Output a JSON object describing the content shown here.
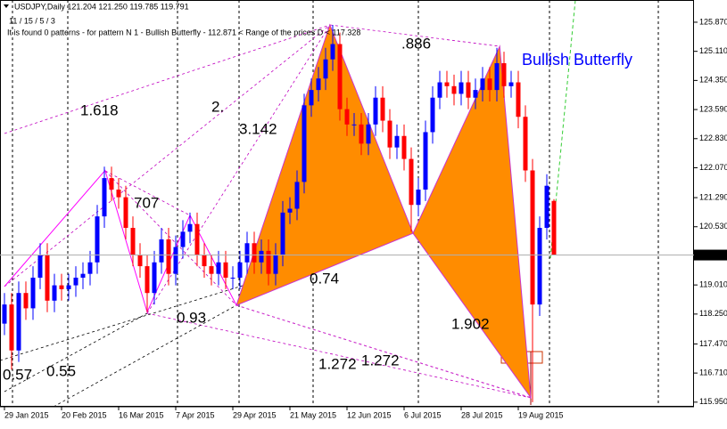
{
  "chart_data": {
    "type": "candlestick",
    "title": "USDJPY,Daily  121.204 121.250 119.785 119.791",
    "subtitle": "11 / 15 / 5 / 3",
    "info": "It is found 0 patterns  -  for pattern N 1 - Bullish Butterfly - 112.871 < Range of the prices D < 117.328",
    "categories": [
      "29 Jan 2015",
      null,
      null,
      null,
      null,
      null,
      null,
      null,
      "20 Feb 2015",
      null,
      null,
      null,
      null,
      null,
      null,
      null,
      "16 Mar 2015",
      null,
      null,
      null,
      null,
      null,
      null,
      null,
      "7 Apr 2015",
      null,
      null,
      null,
      null,
      null,
      null,
      null,
      "29 Apr 2015",
      null,
      null,
      null,
      null,
      null,
      null,
      null,
      "21 May 2015",
      null,
      null,
      null,
      null,
      null,
      null,
      null,
      "12 Jun 2015",
      null,
      null,
      null,
      null,
      null,
      null,
      null,
      "6 Jul 2015",
      null,
      null,
      null,
      null,
      null,
      null,
      null,
      "28 Jul 2015",
      null,
      null,
      null,
      null,
      null,
      null,
      null,
      "19 Aug 2015",
      null,
      null,
      null,
      null,
      null
    ],
    "open": [
      118.0,
      118.5,
      117.3,
      118.8,
      118.4,
      119.2,
      119.8,
      118.6,
      119.0,
      118.9,
      119.0,
      119.2,
      119.3,
      119.6,
      120.8,
      121.8,
      121.5,
      121.3,
      120.5,
      119.8,
      119.5,
      118.8,
      119.6,
      120.2,
      119.3,
      120.0,
      120.4,
      120.6,
      119.8,
      119.5,
      119.3,
      119.6,
      119.2,
      119.2,
      119.6,
      120.1,
      119.6,
      119.9,
      119.3,
      119.8,
      120.9,
      121.0,
      121.7,
      123.7,
      124.1,
      124.4,
      124.9,
      125.3,
      123.6,
      123.2,
      123.2,
      122.7,
      123.2,
      123.9,
      123.3,
      122.6,
      122.9,
      122.3,
      121.1,
      121.5,
      123.0,
      123.9,
      124.3,
      124.2,
      124.0,
      124.3,
      123.9,
      124.1,
      124.4,
      124.1,
      124.8,
      124.2,
      124.3,
      123.4,
      122.0,
      118.5,
      120.5,
      121.204
    ],
    "high": [
      118.8,
      118.8,
      119.1,
      119.1,
      119.5,
      120.1,
      120.1,
      119.3,
      119.3,
      119.3,
      119.5,
      119.6,
      119.9,
      121.1,
      122.1,
      122.1,
      121.8,
      121.6,
      120.8,
      120.1,
      119.8,
      119.9,
      120.5,
      120.5,
      120.3,
      120.7,
      120.9,
      120.9,
      120.1,
      119.8,
      119.9,
      119.9,
      119.5,
      119.9,
      120.4,
      120.4,
      120.2,
      120.2,
      120.1,
      121.2,
      121.3,
      122.0,
      124.0,
      124.4,
      124.7,
      125.2,
      125.8,
      125.6,
      123.9,
      123.5,
      123.5,
      123.5,
      124.2,
      124.2,
      123.6,
      123.2,
      123.2,
      122.6,
      121.8,
      123.3,
      124.2,
      124.6,
      124.6,
      124.5,
      124.6,
      124.6,
      124.4,
      124.7,
      124.7,
      125.2,
      125.1,
      124.6,
      124.6,
      123.7,
      122.3,
      120.8,
      121.9,
      121.25
    ],
    "low": [
      117.7,
      116.8,
      117.0,
      118.1,
      118.1,
      118.9,
      118.3,
      118.3,
      118.6,
      118.6,
      118.7,
      118.9,
      119.0,
      119.3,
      120.5,
      121.2,
      121.0,
      120.2,
      119.5,
      119.2,
      118.3,
      118.5,
      119.3,
      119.0,
      119.0,
      119.7,
      120.1,
      119.5,
      119.2,
      119.0,
      119.0,
      118.9,
      118.9,
      118.9,
      119.3,
      119.3,
      119.3,
      119.0,
      119.0,
      119.5,
      120.6,
      120.7,
      121.4,
      123.4,
      123.8,
      124.1,
      124.6,
      123.3,
      122.9,
      122.9,
      122.4,
      122.4,
      122.9,
      123.0,
      122.3,
      122.3,
      122.0,
      120.4,
      120.8,
      121.2,
      122.7,
      123.6,
      123.9,
      123.7,
      123.7,
      123.6,
      123.6,
      123.8,
      123.8,
      123.8,
      123.9,
      123.9,
      123.1,
      121.7,
      115.95,
      118.2,
      120.2,
      119.785
    ],
    "close": [
      118.5,
      117.3,
      118.8,
      118.4,
      119.2,
      119.8,
      118.6,
      119.0,
      118.9,
      119.0,
      119.2,
      119.3,
      119.6,
      120.8,
      121.8,
      121.5,
      121.3,
      120.5,
      119.8,
      119.5,
      118.8,
      119.6,
      120.2,
      119.3,
      120.0,
      120.4,
      120.6,
      119.8,
      119.5,
      119.3,
      119.6,
      119.2,
      119.2,
      119.6,
      120.1,
      119.6,
      119.9,
      119.3,
      119.8,
      120.9,
      121.0,
      121.7,
      123.7,
      124.1,
      124.4,
      124.9,
      125.3,
      123.6,
      123.2,
      123.2,
      122.7,
      123.2,
      123.9,
      123.3,
      122.6,
      122.9,
      122.3,
      121.1,
      121.5,
      123.0,
      123.9,
      124.3,
      124.2,
      124.0,
      124.3,
      123.9,
      124.1,
      124.4,
      124.1,
      124.8,
      124.2,
      124.3,
      123.4,
      122.0,
      118.5,
      120.5,
      121.6,
      119.791
    ],
    "up_color": "#0000ff",
    "down_color": "#ff0000",
    "ylim": [
      115.83,
      126.45
    ],
    "yticks": [
      {
        "value": 125.87,
        "label": "125.870"
      },
      {
        "value": 125.11,
        "label": "125.110"
      },
      {
        "value": 124.35,
        "label": "124.350"
      },
      {
        "value": 123.59,
        "label": "123.590"
      },
      {
        "value": 122.83,
        "label": "122.830"
      },
      {
        "value": 122.07,
        "label": "122.070"
      },
      {
        "value": 121.29,
        "label": "121.290"
      },
      {
        "value": 120.53,
        "label": "120.530"
      },
      {
        "value": 119.01,
        "label": "119.010"
      },
      {
        "value": 118.25,
        "label": "118.250"
      },
      {
        "value": 117.47,
        "label": "117.470"
      },
      {
        "value": 116.71,
        "label": "116.710"
      },
      {
        "value": 115.95,
        "label": "115.950"
      }
    ],
    "current_price": 119.791,
    "zigzag": {
      "color": "#ff00ff",
      "x": [
        0,
        14.1,
        20,
        26,
        32.5
      ],
      "values": [
        118.97,
        122.0,
        118.3,
        120.83,
        118.48
      ]
    },
    "pattern": {
      "name": "Bullish Butterfly",
      "color": "#ff8c00",
      "label_color": "#0000ff",
      "x": [
        32.5,
        45.6,
        57.25,
        69.4,
        73.75
      ],
      "values": [
        118.48,
        125.8,
        120.36,
        125.24,
        116.07
      ]
    },
    "annotations": [
      "1.618",
      "2.",
      "3.142",
      ".886",
      "707",
      "0.74",
      "0.93",
      "1.902",
      "1.272",
      "1.272",
      "0.57",
      "0.55"
    ]
  }
}
